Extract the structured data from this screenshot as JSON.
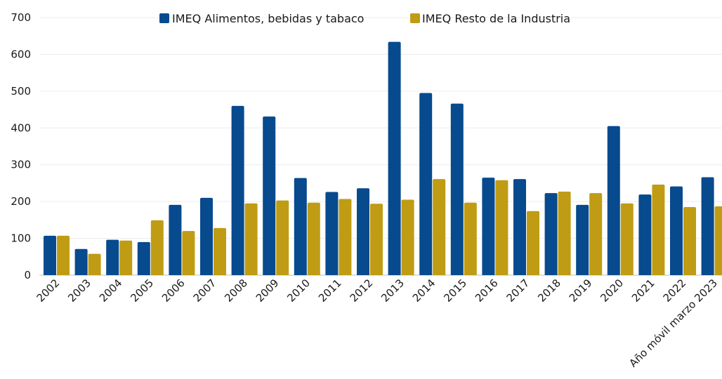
{
  "colors": {
    "series_1": "#074a8e",
    "series_2": "#bf9c14"
  },
  "legend": {
    "series_1_label": "IMEQ Alimentos, bebidas y tabaco",
    "series_2_label": "IMEQ Resto de la Industria",
    "placement": "top"
  },
  "chart_data": {
    "type": "bar",
    "title": "",
    "xlabel": "",
    "ylabel": "",
    "ylim": [
      0,
      700
    ],
    "yticks": [
      0,
      100,
      200,
      300,
      400,
      500,
      600,
      700
    ],
    "grid": true,
    "categories": [
      "2002",
      "2003",
      "2004",
      "2005",
      "2006",
      "2007",
      "2008",
      "2009",
      "2010",
      "2011",
      "2012",
      "2013",
      "2014",
      "2015",
      "2016",
      "2017",
      "2018",
      "2019",
      "2020",
      "2021",
      "2022",
      "Año móvil marzo 2023"
    ],
    "series": [
      {
        "name": "IMEQ Alimentos, bebidas y tabaco",
        "values": [
          107,
          71,
          96,
          90,
          191,
          210,
          460,
          431,
          264,
          226,
          236,
          634,
          495,
          466,
          265,
          261,
          223,
          191,
          405,
          219,
          241,
          266
        ]
      },
      {
        "name": "IMEQ Resto de la Industria",
        "values": [
          107,
          58,
          94,
          149,
          120,
          128,
          195,
          203,
          197,
          207,
          194,
          205,
          261,
          197,
          258,
          174,
          227,
          223,
          195,
          246,
          185,
          187
        ]
      }
    ]
  }
}
